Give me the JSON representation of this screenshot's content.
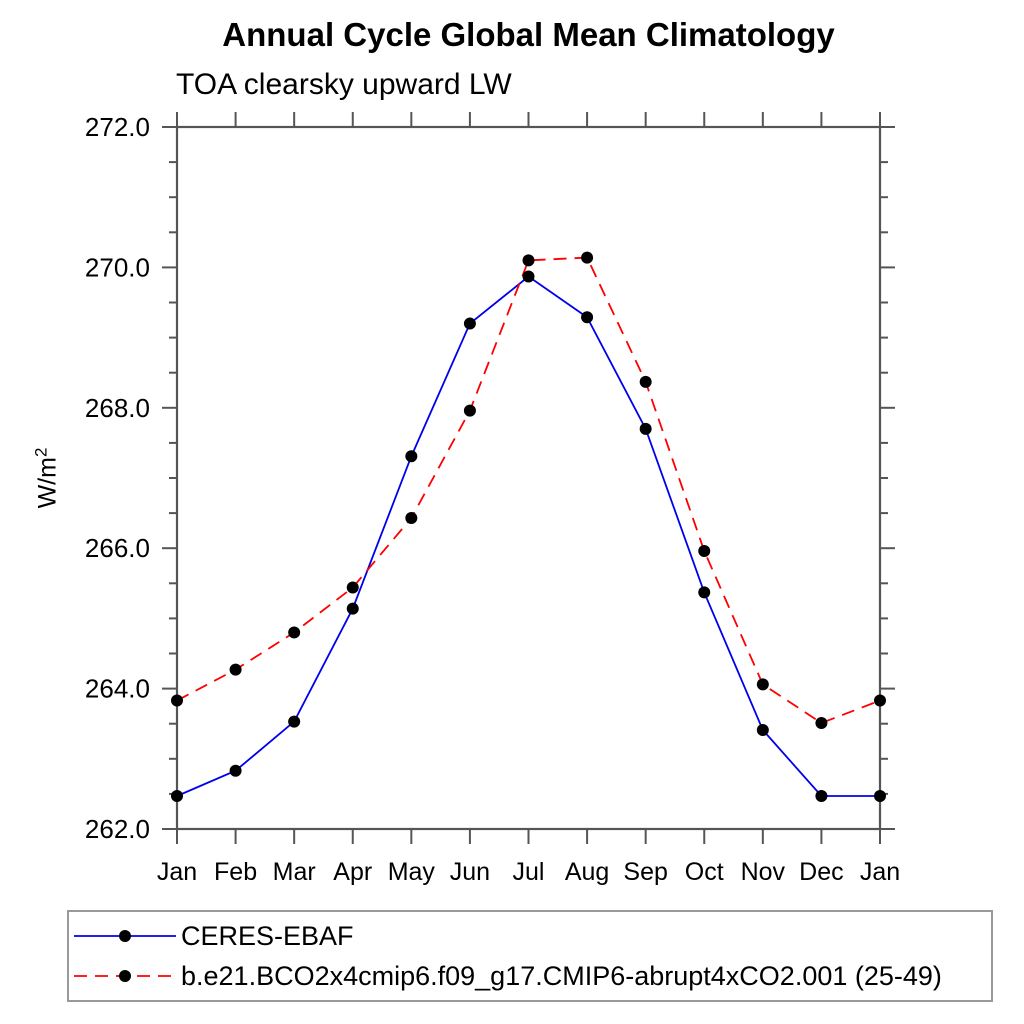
{
  "chart_data": {
    "type": "line",
    "title": "Annual Cycle Global Mean Climatology",
    "subtitle": "TOA clearsky upward LW",
    "ylabel_base": "W/m",
    "ylabel_exp": "2",
    "categories": [
      "Jan",
      "Feb",
      "Mar",
      "Apr",
      "May",
      "Jun",
      "Jul",
      "Aug",
      "Sep",
      "Oct",
      "Nov",
      "Dec",
      "Jan"
    ],
    "ylim": [
      262.0,
      272.0
    ],
    "ytick_major_values": [
      262.0,
      264.0,
      266.0,
      268.0,
      270.0,
      272.0
    ],
    "ytick_major_labels": [
      "262.0",
      "264.0",
      "266.0",
      "268.0",
      "270.0",
      "272.0"
    ],
    "ytick_minor_step": 0.5,
    "grid": false,
    "legend_position": "bottom-left",
    "frame_color": "#555555",
    "marker_color": "#000000",
    "series": [
      {
        "name": "CERES-EBAF",
        "color": "#0000ee",
        "style": "solid",
        "marker": "circle",
        "values": [
          262.47,
          262.83,
          263.53,
          265.14,
          267.31,
          269.2,
          269.87,
          269.29,
          267.7,
          265.37,
          263.41,
          262.47,
          262.47
        ]
      },
      {
        "name": "b.e21.BCO2x4cmip6.f09_g17.CMIP6-abrupt4xCO2.001 (25-49)",
        "color": "#ff0000",
        "style": "dashed",
        "marker": "circle",
        "values": [
          263.83,
          264.27,
          264.8,
          265.44,
          266.43,
          267.96,
          270.1,
          270.14,
          268.37,
          265.96,
          264.06,
          263.51,
          263.83
        ]
      }
    ]
  }
}
